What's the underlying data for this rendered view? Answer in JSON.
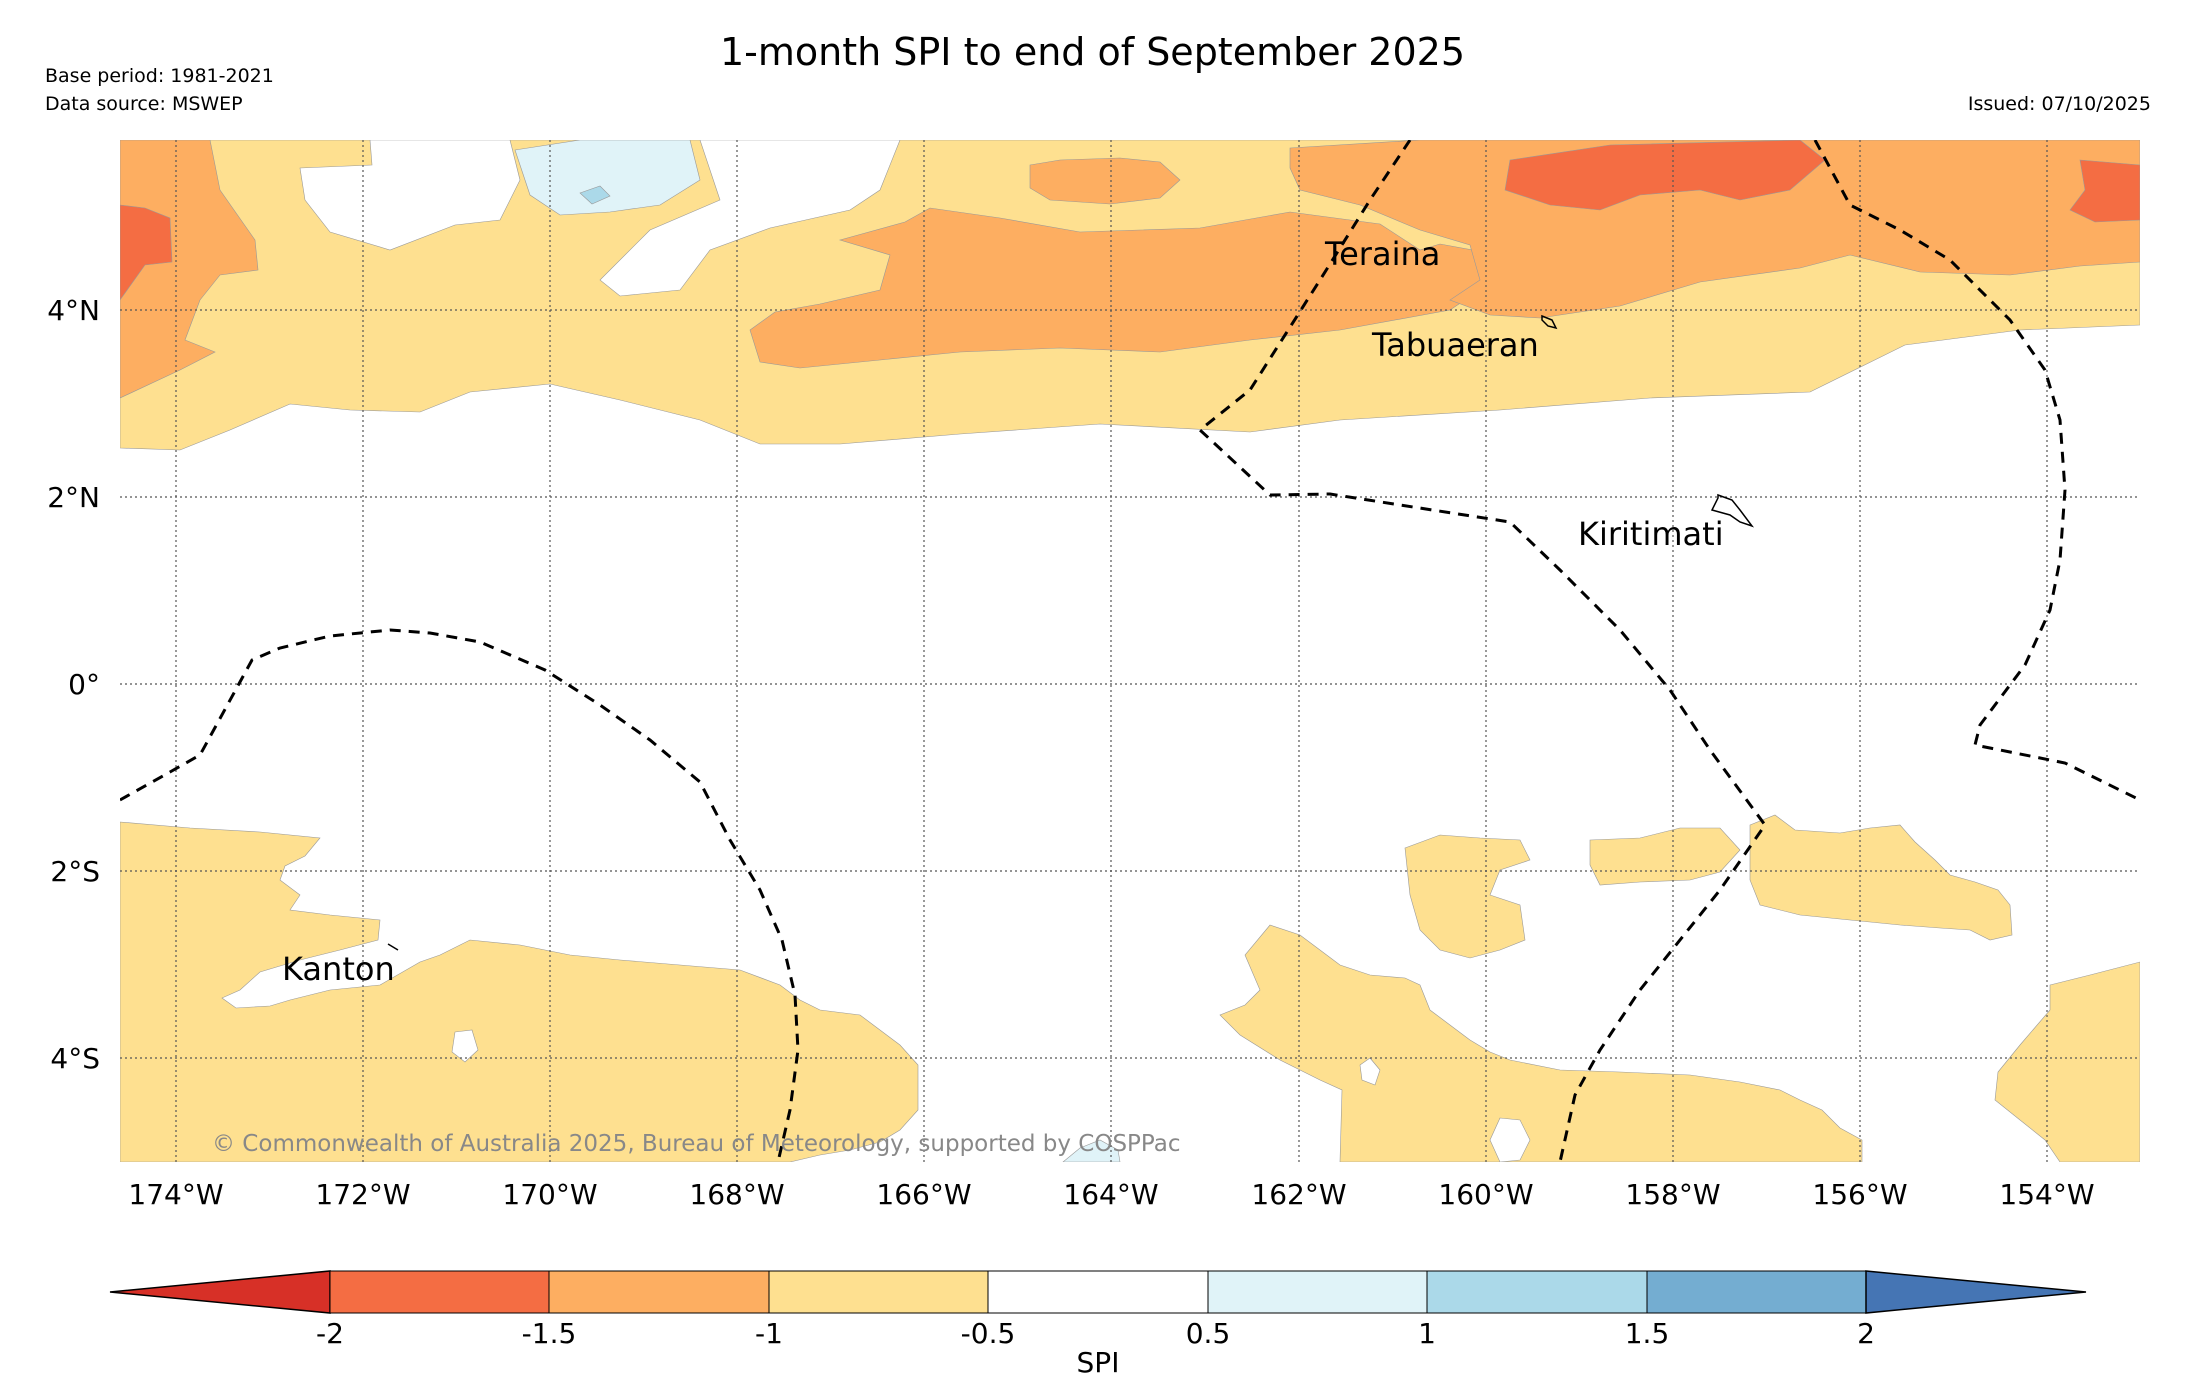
{
  "header": {
    "title": "1-month SPI to end of September 2025",
    "base_period": "Base period: 1981-2021",
    "data_source": "Data source: MSWEP",
    "issued": "Issued: 07/10/2025"
  },
  "map": {
    "lat_labels": [
      "4°N",
      "2°N",
      "0°",
      "2°S",
      "4°S"
    ],
    "lon_labels": [
      "174°W",
      "172°W",
      "170°W",
      "168°W",
      "166°W",
      "164°W",
      "162°W",
      "160°W",
      "158°W",
      "156°W",
      "154°W"
    ],
    "places": [
      "Teraina",
      "Tabuaeran",
      "Kiritimati",
      "Kanton"
    ],
    "copyright": "© Commonwealth of Australia 2025, Bureau of Meteorology, supported by COSPPac"
  },
  "colorbar": {
    "label": "SPI",
    "ticks": [
      "-2",
      "-1.5",
      "-1",
      "-0.5",
      "0.5",
      "1",
      "1.5",
      "2"
    ],
    "colors": {
      "below_-2": "#d73027",
      "-2_to_-1.5": "#f46d43",
      "-1.5_to_-1": "#fdae61",
      "-1_to_-0.5": "#fee090",
      "-0.5_to_0.5": "#ffffff",
      "0.5_to_1": "#e0f3f8",
      "1_to_1.5": "#abd9e9",
      "1.5_to_2": "#74add1",
      "above_2": "#4575b4"
    }
  }
}
